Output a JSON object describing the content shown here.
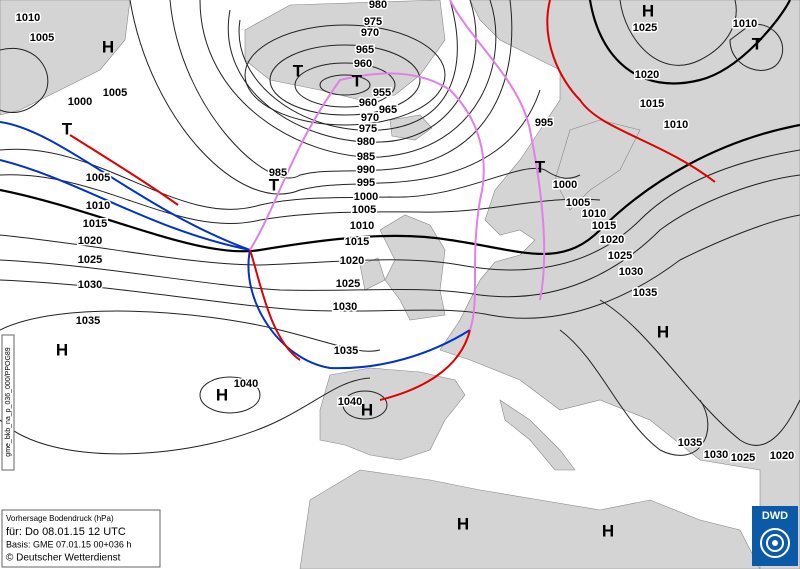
{
  "info": {
    "line1": "Vorhersage Bodendruck (hPa)",
    "line2": "für: Do 08.01.15 12 UTC",
    "line3": "Basis: GME 07.01.15 00+036 h",
    "line4": "© Deutscher Wetterdienst"
  },
  "side_code": "gme_bkb_na_p_036_000/PPOG89",
  "logo": "DWD",
  "isobar_labels": [
    1010,
    1005,
    1000,
    1005,
    980,
    975,
    970,
    965,
    960,
    955,
    960,
    965,
    970,
    975,
    980,
    985,
    990,
    995,
    985,
    1000,
    1005,
    1010,
    1015,
    1020,
    1025,
    1030,
    1035,
    1040,
    1040,
    1005,
    1010,
    1015,
    1020,
    1025,
    1030,
    1035,
    995,
    1000,
    1005,
    1010,
    1015,
    1020,
    1025,
    1030,
    1035,
    1035,
    1030,
    1025,
    1020,
    1025,
    1020,
    1015,
    1010,
    1010
  ],
  "high_labels": [
    "H",
    "H",
    "H",
    "H",
    "H",
    "H",
    "H",
    "H"
  ],
  "low_labels": [
    "T",
    "T",
    "T",
    "T",
    "T",
    "T"
  ]
}
